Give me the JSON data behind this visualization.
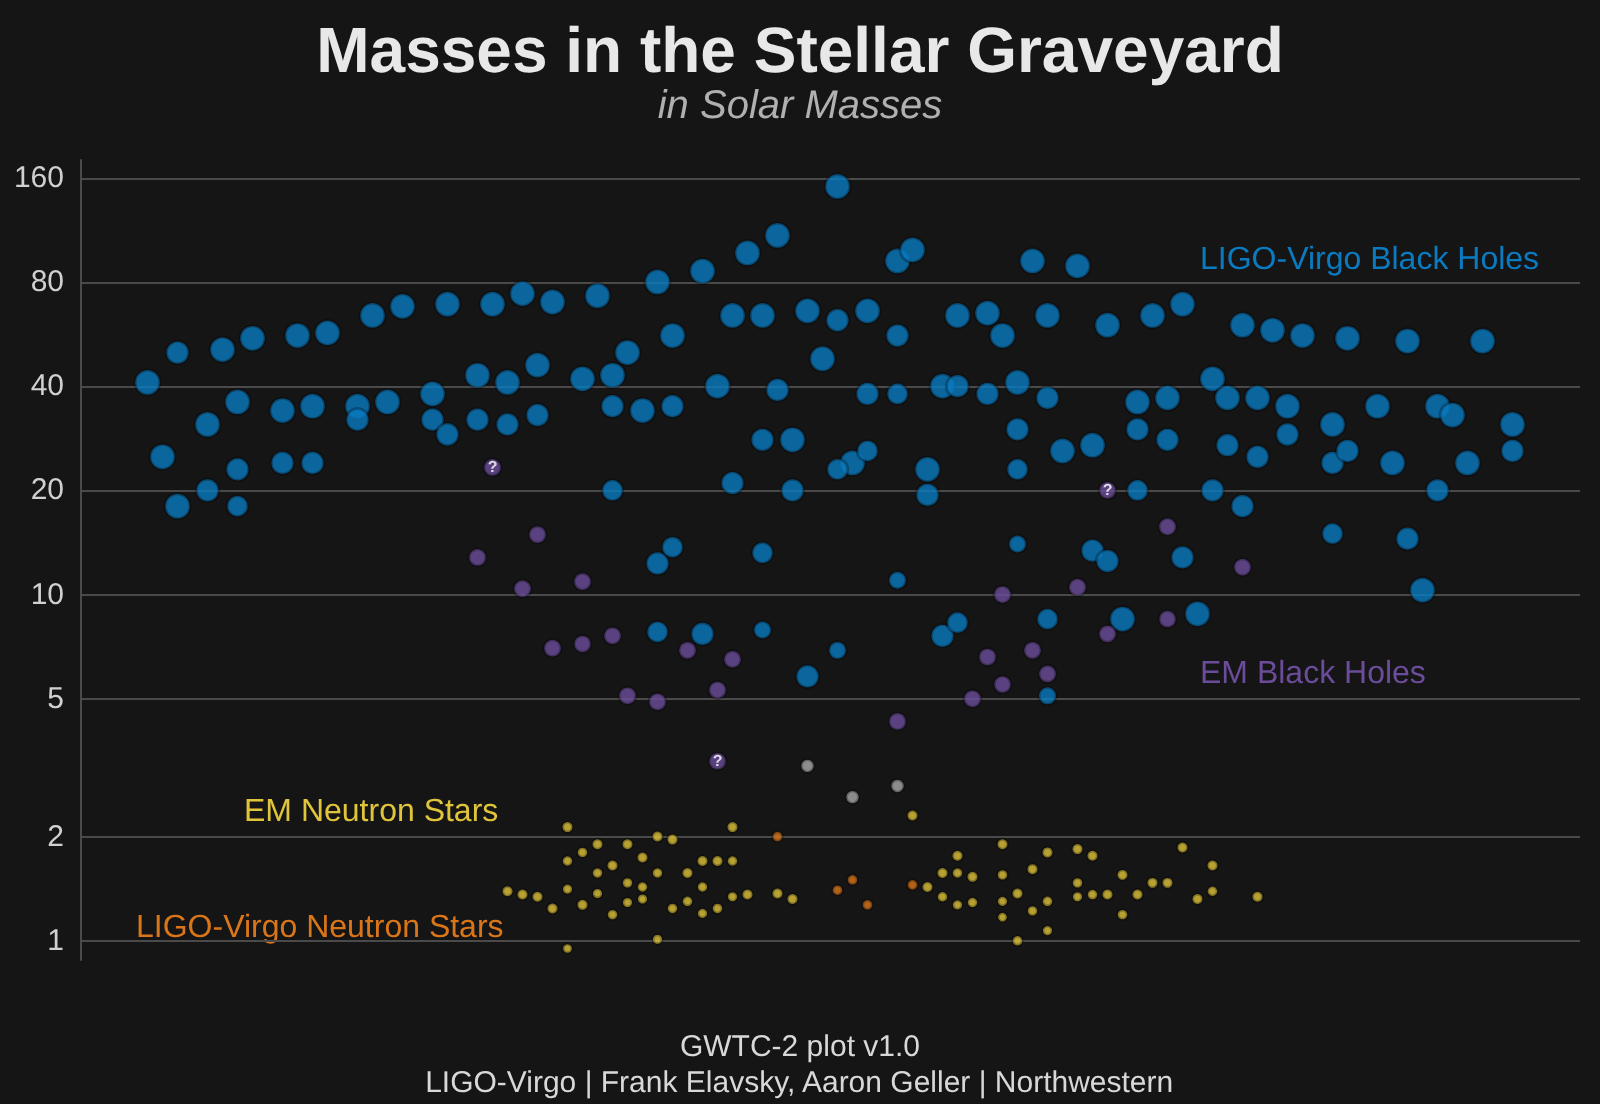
{
  "chart_data": {
    "type": "scatter",
    "title": "Masses in the Stellar Graveyard",
    "subtitle": "in Solar Masses",
    "annotations": [
      "GWTC-2 plot v1.0",
      "LIGO-Virgo | Frank Elavsky, Aaron Geller | Northwestern"
    ],
    "log": "y",
    "grid": "y",
    "tick_labels": "y",
    "marker": "circle",
    "categories": [
      null,
      null,
      null,
      null,
      null,
      null,
      null,
      null,
      null,
      null,
      null,
      null,
      null,
      null,
      null,
      null,
      null,
      null,
      null,
      null,
      null,
      null,
      null,
      null,
      null,
      null,
      null,
      null,
      null,
      null,
      null,
      null,
      null,
      null,
      null,
      null,
      null,
      null,
      null,
      null,
      null,
      null,
      null,
      null,
      null,
      null,
      null,
      null,
      null,
      null,
      null,
      null,
      null,
      null,
      null,
      null,
      null,
      null,
      null,
      null,
      null,
      null,
      null,
      null,
      null,
      null,
      null,
      null,
      null,
      null,
      null,
      null,
      null,
      null,
      null,
      null,
      null,
      null,
      null,
      null,
      null,
      null,
      null,
      null,
      null,
      null,
      null,
      null,
      null,
      null,
      null,
      null,
      null,
      null,
      null,
      null,
      null,
      null,
      null,
      null
    ],
    "ylim": [
      0.88,
      180
    ],
    "yticks": [
      1,
      2,
      5,
      10,
      20,
      40,
      80,
      160
    ],
    "series": [
      {
        "name": "LIGO-Virgo Black Holes",
        "color": "#0a7bc1",
        "values": [
          null,
          null,
          null,
          null,
          41,
          25,
          18,
          null,
          31,
          51,
          36,
          55,
          null,
          34,
          56,
          35,
          57,
          null,
          35,
          64,
          36,
          68,
          null,
          38,
          69,
          null,
          43,
          69,
          41,
          74,
          46,
          70,
          null,
          42,
          73,
          43,
          50,
          34,
          80,
          56,
          null,
          86,
          40,
          64,
          97,
          64,
          109,
          28,
          66,
          48,
          151,
          24,
          66,
          null,
          92,
          99,
          23,
          40,
          64,
          null,
          65,
          56,
          41,
          92,
          64,
          26,
          89,
          27,
          60,
          8.5,
          36,
          64,
          37,
          69,
          8.8,
          42,
          37,
          60,
          37,
          58,
          35,
          56,
          null,
          31,
          55,
          null,
          35,
          24,
          54,
          10.3,
          35,
          33,
          24,
          54,
          null,
          31,
          null,
          null,
          null,
          null
        ]
      },
      {
        "color": "#0a7bc1",
        "values": [
          null,
          null,
          null,
          null,
          null,
          null,
          50,
          null,
          20,
          null,
          23,
          null,
          null,
          24,
          null,
          24,
          null,
          null,
          32,
          null,
          null,
          null,
          null,
          32,
          29,
          null,
          32,
          null,
          31,
          null,
          33,
          null,
          null,
          null,
          null,
          35,
          null,
          null,
          12.3,
          35,
          null,
          7.7,
          null,
          21,
          null,
          28,
          39,
          20,
          5.8,
          null,
          62,
          null,
          38,
          null,
          56,
          null,
          19.4,
          7.6,
          40,
          null,
          38,
          null,
          30,
          null,
          37,
          null,
          null,
          13.4,
          12.5,
          null,
          30,
          null,
          28,
          12.8,
          null,
          20,
          27,
          18,
          25,
          null,
          29,
          null,
          null,
          24,
          26,
          null,
          null,
          null,
          14.5,
          null,
          20,
          null,
          null,
          null,
          null,
          26,
          null,
          null,
          null,
          null
        ]
      },
      {
        "color": "#0a7bc1",
        "values": [
          null,
          null,
          null,
          null,
          null,
          null,
          null,
          null,
          null,
          null,
          18,
          null,
          null,
          null,
          null,
          null,
          null,
          null,
          null,
          null,
          null,
          null,
          null,
          null,
          null,
          null,
          null,
          null,
          null,
          null,
          null,
          null,
          null,
          null,
          null,
          20,
          null,
          null,
          7.8,
          13.7,
          null,
          null,
          null,
          null,
          null,
          13.2,
          null,
          null,
          null,
          null,
          23,
          null,
          26,
          null,
          38,
          null,
          null,
          null,
          8.3,
          null,
          null,
          null,
          23,
          null,
          8.5,
          null,
          null,
          null,
          null,
          null,
          20,
          null,
          null,
          null,
          null,
          null,
          null,
          null,
          null,
          null,
          null,
          null,
          null,
          15,
          null,
          null,
          null,
          null,
          null,
          null,
          null,
          null,
          null,
          null,
          null,
          null,
          null,
          null,
          null,
          null
        ]
      },
      {
        "color": "#0a7bc1",
        "values": [
          null,
          null,
          null,
          null,
          null,
          null,
          null,
          null,
          null,
          null,
          null,
          null,
          null,
          null,
          null,
          null,
          null,
          null,
          null,
          null,
          null,
          null,
          null,
          null,
          null,
          null,
          null,
          null,
          null,
          null,
          null,
          null,
          null,
          null,
          null,
          null,
          null,
          null,
          null,
          null,
          null,
          null,
          null,
          null,
          null,
          7.9,
          null,
          null,
          null,
          null,
          6.9,
          null,
          null,
          null,
          11,
          null,
          null,
          null,
          null,
          null,
          null,
          null,
          14,
          null,
          5.1,
          null,
          null,
          null,
          null,
          null,
          null,
          null,
          null,
          null,
          null,
          null,
          null,
          null,
          null,
          null,
          null,
          null,
          null,
          null,
          null,
          null,
          null,
          null,
          null,
          null,
          null,
          null,
          null,
          null,
          null,
          null,
          null,
          null,
          null,
          null
        ]
      },
      {
        "name": "EM Black Holes",
        "color": "#6b4c9a",
        "values": [
          null,
          null,
          null,
          null,
          null,
          null,
          null,
          null,
          null,
          null,
          null,
          null,
          null,
          null,
          null,
          null,
          null,
          null,
          null,
          null,
          null,
          null,
          null,
          null,
          null,
          null,
          12.8,
          23.3,
          null,
          10.4,
          14.9,
          7.0,
          null,
          10.9,
          null,
          7.6,
          5.1,
          null,
          4.9,
          null,
          6.9,
          null,
          5.3,
          6.5,
          null,
          null,
          null,
          null,
          null,
          null,
          null,
          null,
          null,
          null,
          4.3,
          null,
          null,
          null,
          null,
          5,
          6.6,
          10,
          null,
          6.9,
          5.9,
          null,
          10.5,
          null,
          7.7,
          null,
          null,
          null,
          15.7,
          null,
          null,
          null,
          null,
          12,
          null,
          null,
          null,
          null,
          null,
          null,
          null,
          null,
          null,
          null,
          null,
          null,
          null,
          null,
          null,
          null,
          null,
          null,
          null,
          null,
          null,
          null
        ],
        "value_labels": [
          null,
          null,
          null,
          null,
          null,
          null,
          null,
          null,
          null,
          null,
          null,
          null,
          null,
          null,
          null,
          null,
          null,
          null,
          null,
          null,
          null,
          null,
          null,
          null,
          null,
          null,
          null,
          "?",
          null,
          null,
          null,
          null,
          null,
          null,
          null,
          null,
          null,
          null,
          null,
          null,
          null,
          null,
          null,
          null,
          null,
          null,
          null,
          null,
          null,
          null,
          null,
          null,
          null,
          null,
          null,
          null,
          null,
          null,
          null,
          null,
          null,
          null,
          null,
          null,
          null,
          null,
          null,
          null,
          null,
          null,
          null,
          null,
          null,
          null,
          null,
          null,
          null,
          null,
          null,
          null,
          null,
          null,
          null,
          null,
          null,
          null,
          null,
          null,
          null,
          null,
          null,
          null,
          null,
          null,
          null,
          null,
          null,
          null,
          null,
          null
        ]
      },
      {
        "color": "#6b4c9a",
        "values": [
          null,
          null,
          null,
          null,
          null,
          null,
          null,
          null,
          null,
          null,
          null,
          null,
          null,
          null,
          null,
          null,
          null,
          null,
          null,
          null,
          null,
          null,
          null,
          null,
          null,
          null,
          null,
          null,
          null,
          null,
          null,
          null,
          null,
          7.2,
          null,
          null,
          null,
          null,
          null,
          null,
          null,
          null,
          3.3,
          null,
          null,
          null,
          null,
          null,
          null,
          null,
          null,
          null,
          null,
          null,
          null,
          null,
          null,
          null,
          null,
          null,
          null,
          5.5,
          null,
          null,
          null,
          null,
          null,
          null,
          20,
          null,
          null,
          null,
          8.5,
          null,
          null,
          null,
          null,
          null,
          null,
          null,
          null,
          null,
          null,
          null,
          null,
          null,
          null,
          null,
          null,
          null,
          null,
          null,
          null,
          null,
          null,
          null,
          null,
          null,
          null,
          null
        ],
        "value_labels": [
          null,
          null,
          null,
          null,
          null,
          null,
          null,
          null,
          null,
          null,
          null,
          null,
          null,
          null,
          null,
          null,
          null,
          null,
          null,
          null,
          null,
          null,
          null,
          null,
          null,
          null,
          null,
          null,
          null,
          null,
          null,
          null,
          null,
          null,
          null,
          null,
          null,
          null,
          null,
          null,
          null,
          null,
          "?",
          null,
          null,
          null,
          null,
          null,
          null,
          null,
          null,
          null,
          null,
          null,
          null,
          null,
          null,
          null,
          null,
          null,
          null,
          null,
          null,
          null,
          null,
          null,
          null,
          null,
          "?",
          null,
          null,
          null,
          null,
          null,
          null,
          null,
          null,
          null,
          null,
          null,
          null,
          null,
          null,
          null,
          null,
          null,
          null,
          null,
          null,
          null,
          null,
          null,
          null,
          null,
          null,
          null,
          null,
          null,
          null,
          null
        ]
      },
      {
        "name": "EM Neutron Stars",
        "color": "#e0c43a",
        "values": [
          null,
          null,
          null,
          null,
          null,
          null,
          null,
          null,
          null,
          null,
          null,
          null,
          null,
          null,
          null,
          null,
          null,
          null,
          null,
          null,
          null,
          null,
          null,
          null,
          null,
          null,
          null,
          null,
          1.39,
          1.36,
          1.34,
          1.24,
          2.13,
          1.27,
          1.9,
          1.65,
          1.9,
          1.74,
          2.0,
          1.96,
          1.57,
          1.7,
          1.7,
          2.13,
          1.36,
          null,
          1.37,
          1.32,
          null,
          null,
          null,
          null,
          null,
          null,
          null,
          2.3,
          1.43,
          1.57,
          1.76,
          1.53,
          null,
          1.9,
          1.37,
          1.61,
          1.8,
          null,
          1.84,
          1.76,
          1.36,
          1.55,
          1.36,
          1.47,
          1.47,
          1.86,
          1.32,
          1.65,
          null,
          null,
          1.34,
          null,
          null,
          null,
          null,
          null,
          null,
          null,
          null,
          null,
          null,
          null,
          null,
          null,
          null,
          null,
          null,
          null,
          null,
          null,
          null,
          null
        ]
      },
      {
        "color": "#e0c43a",
        "values": [
          null,
          null,
          null,
          null,
          null,
          null,
          null,
          null,
          null,
          null,
          null,
          null,
          null,
          null,
          null,
          null,
          null,
          null,
          null,
          null,
          null,
          null,
          null,
          null,
          null,
          null,
          null,
          null,
          null,
          null,
          null,
          null,
          1.7,
          1.8,
          1.57,
          1.19,
          1.47,
          1.43,
          1.57,
          1.24,
          1.3,
          1.43,
          1.24,
          1.7,
          null,
          null,
          null,
          null,
          null,
          null,
          null,
          null,
          null,
          null,
          null,
          null,
          null,
          1.34,
          1.57,
          1.29,
          null,
          1.55,
          1.0,
          1.22,
          1.3,
          null,
          1.47,
          1.36,
          null,
          1.19,
          null,
          null,
          null,
          null,
          null,
          1.39,
          null,
          null,
          null,
          null,
          null,
          null,
          null,
          null,
          null,
          null,
          null,
          null,
          null,
          null,
          null,
          null,
          null,
          null,
          null,
          null,
          null,
          null,
          null,
          null
        ]
      },
      {
        "color": "#e0c43a",
        "values": [
          null,
          null,
          null,
          null,
          null,
          null,
          null,
          null,
          null,
          null,
          null,
          null,
          null,
          null,
          null,
          null,
          null,
          null,
          null,
          null,
          null,
          null,
          null,
          null,
          null,
          null,
          null,
          null,
          null,
          null,
          null,
          null,
          1.41,
          null,
          1.37,
          null,
          1.29,
          1.32,
          1.01,
          null,
          null,
          1.2,
          null,
          1.34,
          null,
          null,
          null,
          null,
          null,
          null,
          null,
          null,
          null,
          null,
          null,
          null,
          null,
          null,
          1.27,
          null,
          null,
          1.3,
          null,
          null,
          1.07,
          null,
          1.34,
          null,
          null,
          null,
          null,
          null,
          null,
          null,
          null,
          null,
          null,
          null,
          null,
          null,
          null,
          null,
          null,
          null,
          null,
          null,
          null,
          null,
          null,
          null,
          null,
          null,
          null,
          null,
          null,
          null,
          null,
          null,
          null,
          null
        ]
      },
      {
        "color": "#e0c43a",
        "values": [
          null,
          null,
          null,
          null,
          null,
          null,
          null,
          null,
          null,
          null,
          null,
          null,
          null,
          null,
          null,
          null,
          null,
          null,
          null,
          null,
          null,
          null,
          null,
          null,
          null,
          null,
          null,
          null,
          null,
          null,
          null,
          null,
          0.95,
          null,
          null,
          null,
          null,
          null,
          null,
          null,
          null,
          null,
          null,
          null,
          null,
          null,
          null,
          null,
          null,
          null,
          null,
          null,
          null,
          null,
          null,
          null,
          null,
          null,
          null,
          null,
          null,
          1.17,
          null,
          null,
          null,
          null,
          null,
          null,
          null,
          null,
          null,
          null,
          null,
          null,
          null,
          null,
          null,
          null,
          null,
          null,
          null,
          null,
          null,
          null,
          null,
          null,
          null,
          null,
          null,
          null,
          null,
          null,
          null,
          null,
          null,
          null,
          null,
          null,
          null,
          null
        ]
      },
      {
        "name": "LIGO-Virgo Neutron Stars",
        "color": "#d9761a",
        "values": [
          null,
          null,
          null,
          null,
          null,
          null,
          null,
          null,
          null,
          null,
          null,
          null,
          null,
          null,
          null,
          null,
          null,
          null,
          null,
          null,
          null,
          null,
          null,
          null,
          null,
          null,
          null,
          null,
          null,
          null,
          null,
          null,
          null,
          null,
          null,
          null,
          null,
          null,
          null,
          null,
          null,
          null,
          null,
          null,
          null,
          null,
          2.0,
          null,
          null,
          null,
          1.4,
          1.5,
          1.27,
          null,
          null,
          1.45,
          null,
          null,
          null,
          null,
          null,
          null,
          null,
          null,
          null,
          null,
          null,
          null,
          null,
          null,
          null,
          null,
          null,
          null,
          null,
          null,
          null,
          null,
          null,
          null,
          null,
          null,
          null,
          null,
          null,
          null,
          null,
          null,
          null,
          null,
          null,
          null,
          null,
          null,
          null,
          null,
          null,
          null,
          null,
          null
        ]
      },
      {
        "color": "#aaaaaa",
        "values": [
          null,
          null,
          null,
          null,
          null,
          null,
          null,
          null,
          null,
          null,
          null,
          null,
          null,
          null,
          null,
          null,
          null,
          null,
          null,
          null,
          null,
          null,
          null,
          null,
          null,
          null,
          null,
          null,
          null,
          null,
          null,
          null,
          null,
          null,
          null,
          null,
          null,
          null,
          null,
          null,
          null,
          null,
          null,
          null,
          null,
          null,
          null,
          null,
          3.2,
          null,
          null,
          2.6,
          null,
          null,
          2.8,
          null,
          null,
          null,
          null,
          null,
          null,
          null,
          null,
          null,
          null,
          null,
          null,
          null,
          null,
          null,
          null,
          null,
          null,
          null,
          null,
          null,
          null,
          null,
          null,
          null,
          null,
          null,
          null,
          null,
          null,
          null,
          null,
          null,
          null,
          null,
          null,
          null,
          null,
          null,
          null,
          null,
          null,
          null,
          null,
          null
        ]
      }
    ]
  }
}
